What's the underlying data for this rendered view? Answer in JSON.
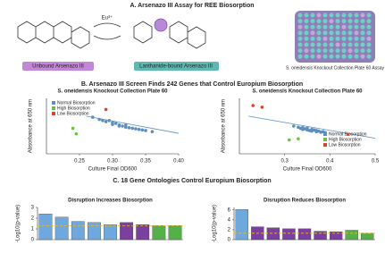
{
  "panel_a": {
    "title": "A. Arsenazo III Assay for REE Biosorption",
    "ion": "Eu³⁺",
    "unbound": "Unbound Arsenazo III",
    "bound": "Lanthanide-bound Arsenazo III",
    "plate": "S. oneidensis Knockout Collection Plate 60 Assay"
  },
  "panel_b_title": "B. Arsenazo III Screen Finds 242 Genes that Control Europium Biosorption",
  "panel_c_title": "C. 18 Gene Ontologies Control Europium Biosorption",
  "chart_data": [
    {
      "type": "scatter",
      "title": "S. oneidensis Knockout Collection Plate 60",
      "x_label": "Culture Final OD600",
      "y_label": "Absorbance at 650 nm",
      "xlim": [
        0.2,
        0.4
      ],
      "xticks": [
        {
          "value": 0.25,
          "label": "0.25"
        },
        {
          "value": 0.3,
          "label": "0.30"
        },
        {
          "value": 0.35,
          "label": "0.35"
        },
        {
          "value": 0.4,
          "label": "0.40"
        }
      ],
      "ylim": [
        0,
        1
      ],
      "legend": "top-left",
      "fit": {
        "x": [
          0.26,
          0.4
        ],
        "y": [
          0.68,
          0.37
        ]
      },
      "series": [
        {
          "name": "Normal Biosorption",
          "color": "#5b8fc0",
          "x": [
            0.27,
            0.28,
            0.285,
            0.29,
            0.295,
            0.3,
            0.3,
            0.305,
            0.31,
            0.31,
            0.315,
            0.32,
            0.32,
            0.325,
            0.33,
            0.335,
            0.34,
            0.345,
            0.35,
            0.36
          ],
          "y": [
            0.66,
            0.62,
            0.6,
            0.58,
            0.6,
            0.56,
            0.53,
            0.55,
            0.52,
            0.5,
            0.5,
            0.48,
            0.52,
            0.47,
            0.46,
            0.45,
            0.44,
            0.43,
            0.42,
            0.4
          ]
        },
        {
          "name": "High Biosorption",
          "color": "#6bbf4a",
          "x": [
            0.24,
            0.245
          ],
          "y": [
            0.46,
            0.36
          ]
        },
        {
          "name": "Low Biosorption",
          "color": "#d9452b",
          "x": [
            0.29
          ],
          "y": [
            0.8
          ]
        }
      ]
    },
    {
      "type": "scatter",
      "title": "S. oneidensis Knockout Collection Plate 60",
      "x_label": "Culture Final OD600",
      "y_label": "Absorbance at 650 nm",
      "xlim": [
        0.2,
        0.5
      ],
      "xticks": [
        0.3,
        0.4,
        0.5
      ],
      "ylim": [
        0,
        1
      ],
      "legend": "bottom-right",
      "fit": {
        "x": [
          0.22,
          0.5
        ],
        "y": [
          0.68,
          0.28
        ]
      },
      "series": [
        {
          "name": "Normal Biosorption",
          "color": "#5b8fc0",
          "x": [
            0.32,
            0.33,
            0.335,
            0.34,
            0.34,
            0.345,
            0.35,
            0.35,
            0.355,
            0.36,
            0.36,
            0.365,
            0.37,
            0.37,
            0.375,
            0.38,
            0.385,
            0.39
          ],
          "y": [
            0.5,
            0.48,
            0.46,
            0.47,
            0.44,
            0.45,
            0.43,
            0.46,
            0.42,
            0.44,
            0.41,
            0.43,
            0.4,
            0.42,
            0.41,
            0.39,
            0.4,
            0.38
          ]
        },
        {
          "name": "High Biosorption",
          "color": "#6bbf4a",
          "x": [
            0.31,
            0.33
          ],
          "y": [
            0.25,
            0.27
          ]
        },
        {
          "name": "Low Biosorption",
          "color": "#d9452b",
          "x": [
            0.23,
            0.25,
            0.44
          ],
          "y": [
            0.87,
            0.84,
            0.35
          ]
        }
      ]
    },
    {
      "type": "bar",
      "title": "Disruption Increases Biosorption",
      "y_label": "-Log10(p-value)",
      "ylim": [
        0,
        3
      ],
      "yticks": [
        0,
        1,
        2,
        3
      ],
      "threshold": 1.3,
      "categories": [
        null,
        null,
        null,
        null,
        null,
        null,
        null,
        null,
        null
      ],
      "values": [
        2.4,
        2.1,
        1.7,
        1.6,
        1.4,
        1.6,
        1.4,
        1.3,
        1.3
      ],
      "colors": [
        "#6fa8dc",
        "#6fa8dc",
        "#6fa8dc",
        "#6fa8dc",
        "#6fa8dc",
        "#7b3fa0",
        "#7b3fa0",
        "#55b04a",
        "#55b04a"
      ]
    },
    {
      "type": "bar",
      "title": "Disruption Reduces Biosorption",
      "y_label": "-Log10(p-value)",
      "ylim": [
        0,
        6.5
      ],
      "yticks": [
        0,
        2,
        4,
        6
      ],
      "threshold": 1.3,
      "categories": [
        null,
        null,
        null,
        null,
        null,
        null,
        null,
        null,
        null
      ],
      "values": [
        6.1,
        2.6,
        2.4,
        2.2,
        2.2,
        1.7,
        1.6,
        1.9,
        1.3
      ],
      "colors": [
        "#6fa8dc",
        "#7b3fa0",
        "#7b3fa0",
        "#7b3fa0",
        "#7b3fa0",
        "#7b3fa0",
        "#7b3fa0",
        "#55b04a",
        "#55b04a"
      ]
    }
  ]
}
